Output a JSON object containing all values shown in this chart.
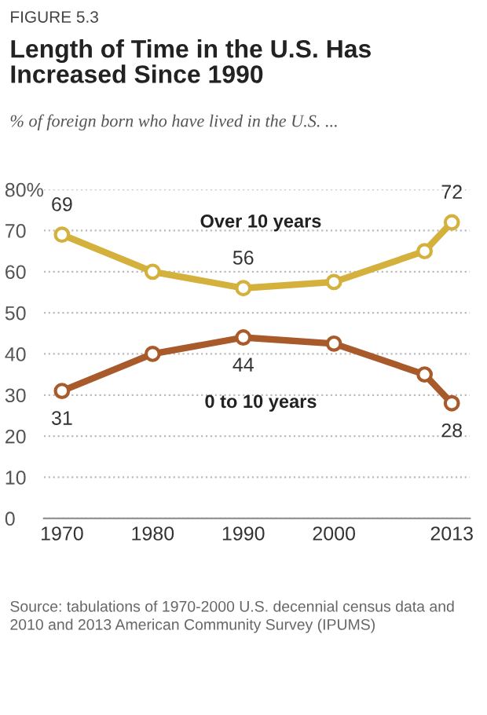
{
  "chart_data": {
    "type": "line",
    "title": "Length of Time in the U.S. Has\nIncreased Since 1990",
    "subtitle": "% of foreign born who have lived in the U.S. ...",
    "annotations": [
      "FIGURE 5.3",
      "Source: tabulations of 1970-2000 U.S. decennial census data and 2010 and 2013 American Community Survey (IPUMS)"
    ],
    "x": [
      1970,
      1980,
      1990,
      2000,
      2010,
      2013
    ],
    "series": [
      {
        "name": "Over 10 years",
        "color": "#d4b03c",
        "values": [
          69,
          60,
          56,
          57.5,
          65,
          72
        ],
        "value_labels": [
          "69",
          null,
          "56",
          null,
          null,
          "72"
        ]
      },
      {
        "name": "0 to 10 years",
        "color": "#a85a2a",
        "values": [
          31,
          40,
          44,
          42.5,
          35,
          28
        ],
        "value_labels": [
          "31",
          null,
          "44",
          null,
          null,
          "28"
        ]
      }
    ],
    "xlim": [
      1968,
      2015
    ],
    "xticks": [
      1970,
      1980,
      1990,
      2000,
      2013
    ],
    "ylim": [
      0,
      80
    ],
    "yticks": [
      0,
      10,
      20,
      30,
      40,
      50,
      60,
      70,
      {
        "value": 80,
        "label": "80%"
      }
    ],
    "grid": "y",
    "marker": "circle",
    "line_style": "solid",
    "legend": false
  }
}
